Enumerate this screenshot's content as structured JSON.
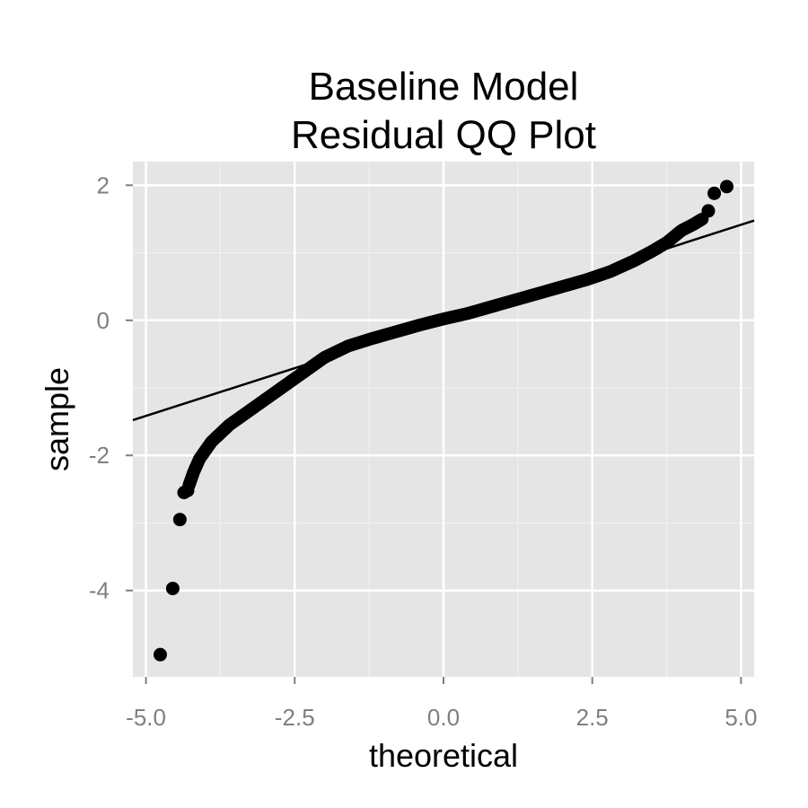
{
  "chart_data": {
    "type": "scatter",
    "title": "Baseline Model",
    "subtitle": "Residual QQ Plot",
    "xlabel": "theoretical",
    "ylabel": "sample",
    "xlim": [
      -5.22,
      5.22
    ],
    "ylim": [
      -5.28,
      2.35
    ],
    "x_ticks": [
      -5.0,
      -2.5,
      0.0,
      2.5,
      5.0
    ],
    "x_tick_labels": [
      "-5.0",
      "-2.5",
      "0.0",
      "2.5",
      "5.0"
    ],
    "y_ticks": [
      -4,
      -2,
      0,
      2
    ],
    "y_tick_labels": [
      "-4",
      "-2",
      "0",
      "2"
    ],
    "grid": true,
    "legend": "none",
    "colors": {
      "panel_background": "#e5e5e5",
      "major_grid": "#ffffff",
      "minor_grid": "#f2f2f2",
      "points": "#000000",
      "reference_line": "#000000",
      "tick_label": "#7f7f7f"
    },
    "reference_line": {
      "intercept": 0.0,
      "slope": 0.283
    },
    "series": [
      {
        "outliers": [
          [
            -4.76,
            -4.95
          ],
          [
            -4.55,
            -3.97
          ],
          [
            -4.43,
            -2.95
          ],
          [
            -4.36,
            -2.55
          ],
          [
            -4.3,
            -2.52
          ],
          [
            4.45,
            1.62
          ],
          [
            4.55,
            1.88
          ],
          [
            4.76,
            1.98
          ]
        ],
        "curve": [
          [
            -4.28,
            -2.45
          ],
          [
            -4.2,
            -2.25
          ],
          [
            -4.1,
            -2.05
          ],
          [
            -3.9,
            -1.8
          ],
          [
            -3.6,
            -1.55
          ],
          [
            -3.2,
            -1.3
          ],
          [
            -2.8,
            -1.05
          ],
          [
            -2.4,
            -0.8
          ],
          [
            -2.0,
            -0.55
          ],
          [
            -1.6,
            -0.38
          ],
          [
            -1.2,
            -0.27
          ],
          [
            -0.8,
            -0.17
          ],
          [
            -0.4,
            -0.07
          ],
          [
            0.0,
            0.02
          ],
          [
            0.4,
            0.1
          ],
          [
            0.8,
            0.2
          ],
          [
            1.2,
            0.3
          ],
          [
            1.6,
            0.4
          ],
          [
            2.0,
            0.5
          ],
          [
            2.4,
            0.6
          ],
          [
            2.8,
            0.72
          ],
          [
            3.2,
            0.88
          ],
          [
            3.5,
            1.02
          ],
          [
            3.75,
            1.15
          ],
          [
            4.0,
            1.33
          ],
          [
            4.2,
            1.42
          ],
          [
            4.35,
            1.5
          ]
        ]
      }
    ]
  }
}
